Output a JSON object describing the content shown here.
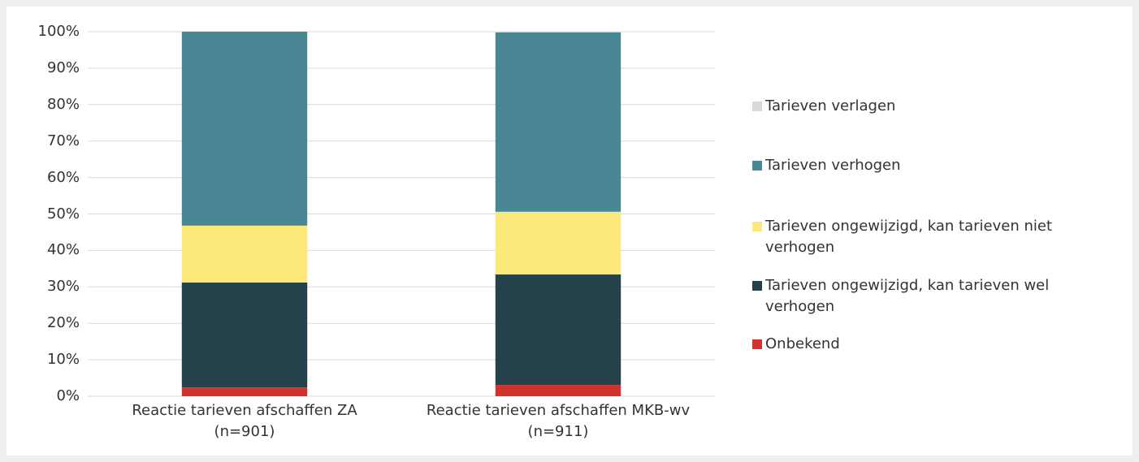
{
  "chart_data": {
    "type": "stacked_bar",
    "categories": [
      "Reactie tarieven afschaffen ZA\n(n=901)",
      "Reactie tarieven afschaffen MKB-wv\n(n=911)"
    ],
    "series": [
      {
        "name": "Onbekend",
        "color": "#d2322d",
        "values": [
          2.4,
          3.1
        ]
      },
      {
        "name": "Tarieven ongewijzigd, kan tarieven wel verhogen",
        "color": "#25414a",
        "values": [
          28.8,
          30.3
        ]
      },
      {
        "name": "Tarieven ongewijzigd, kan tarieven niet verhogen",
        "color": "#fde97a",
        "values": [
          15.6,
          17.2
        ]
      },
      {
        "name": "Tarieven verhogen",
        "color": "#4a8794",
        "values": [
          53.2,
          49.2
        ]
      },
      {
        "name": "Tarieven verlagen",
        "color": "#d9d9d9",
        "values": [
          0,
          0.2
        ]
      }
    ],
    "ylim": [
      0,
      100
    ],
    "yticks": [
      {
        "value": 0,
        "label": "0%"
      },
      {
        "value": 10,
        "label": "10%"
      },
      {
        "value": 20,
        "label": "20%"
      },
      {
        "value": 30,
        "label": "30%"
      },
      {
        "value": 40,
        "label": "40%"
      },
      {
        "value": 50,
        "label": "50%"
      },
      {
        "value": 60,
        "label": "60%"
      },
      {
        "value": 70,
        "label": "70%"
      },
      {
        "value": 80,
        "label": "80%"
      },
      {
        "value": 90,
        "label": "90%"
      },
      {
        "value": 100,
        "label": "100%"
      }
    ],
    "grid": true,
    "legend": "right"
  }
}
